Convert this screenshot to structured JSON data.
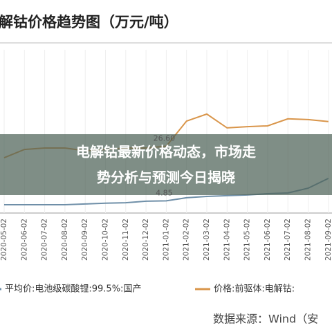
{
  "chart_data": {
    "type": "line",
    "title": "解钴价格趋势图（万元/吨）",
    "banner": [
      "电解钴最新价格动态，市场走",
      "势分析与预测今日揭晓"
    ],
    "source": "数据来源：Wind（安",
    "categories": [
      "2020-05-02",
      "2020-06-02",
      "2020-07-02",
      "2020-08-02",
      "2020-09-02",
      "2020-10-02",
      "2020-11-02",
      "2020-12-02",
      "2021-01-02",
      "2021-02-02",
      "2021-03-02",
      "2021-04-02",
      "2021-05-02",
      "2021-06-02",
      "2021-07-02",
      "2021-08-02",
      "2021-09-02"
    ],
    "ylim": [
      0,
      65
    ],
    "series": [
      {
        "name": "平均价:电池级碳酸锂:99.5%:国产",
        "color": "#6f8fa8",
        "values": [
          3.3,
          3.3,
          3.3,
          3.3,
          3.6,
          3.9,
          4.1,
          4.7,
          4.85,
          6.1,
          6.6,
          6.9,
          7.2,
          7.7,
          8.0,
          9.9,
          13.8
        ],
        "value_labels": {
          "8": "4.85"
        }
      },
      {
        "name": "价格:前驱体:电解钴:",
        "color": "#d9954a",
        "values": [
          22.0,
          25.3,
          25.9,
          25.9,
          24.8,
          25.3,
          25.9,
          25.9,
          26.6,
          36.6,
          39.4,
          33.9,
          34.4,
          34.7,
          37.5,
          37.2,
          36.4
        ],
        "value_labels": {
          "8": "26.60"
        }
      }
    ]
  }
}
